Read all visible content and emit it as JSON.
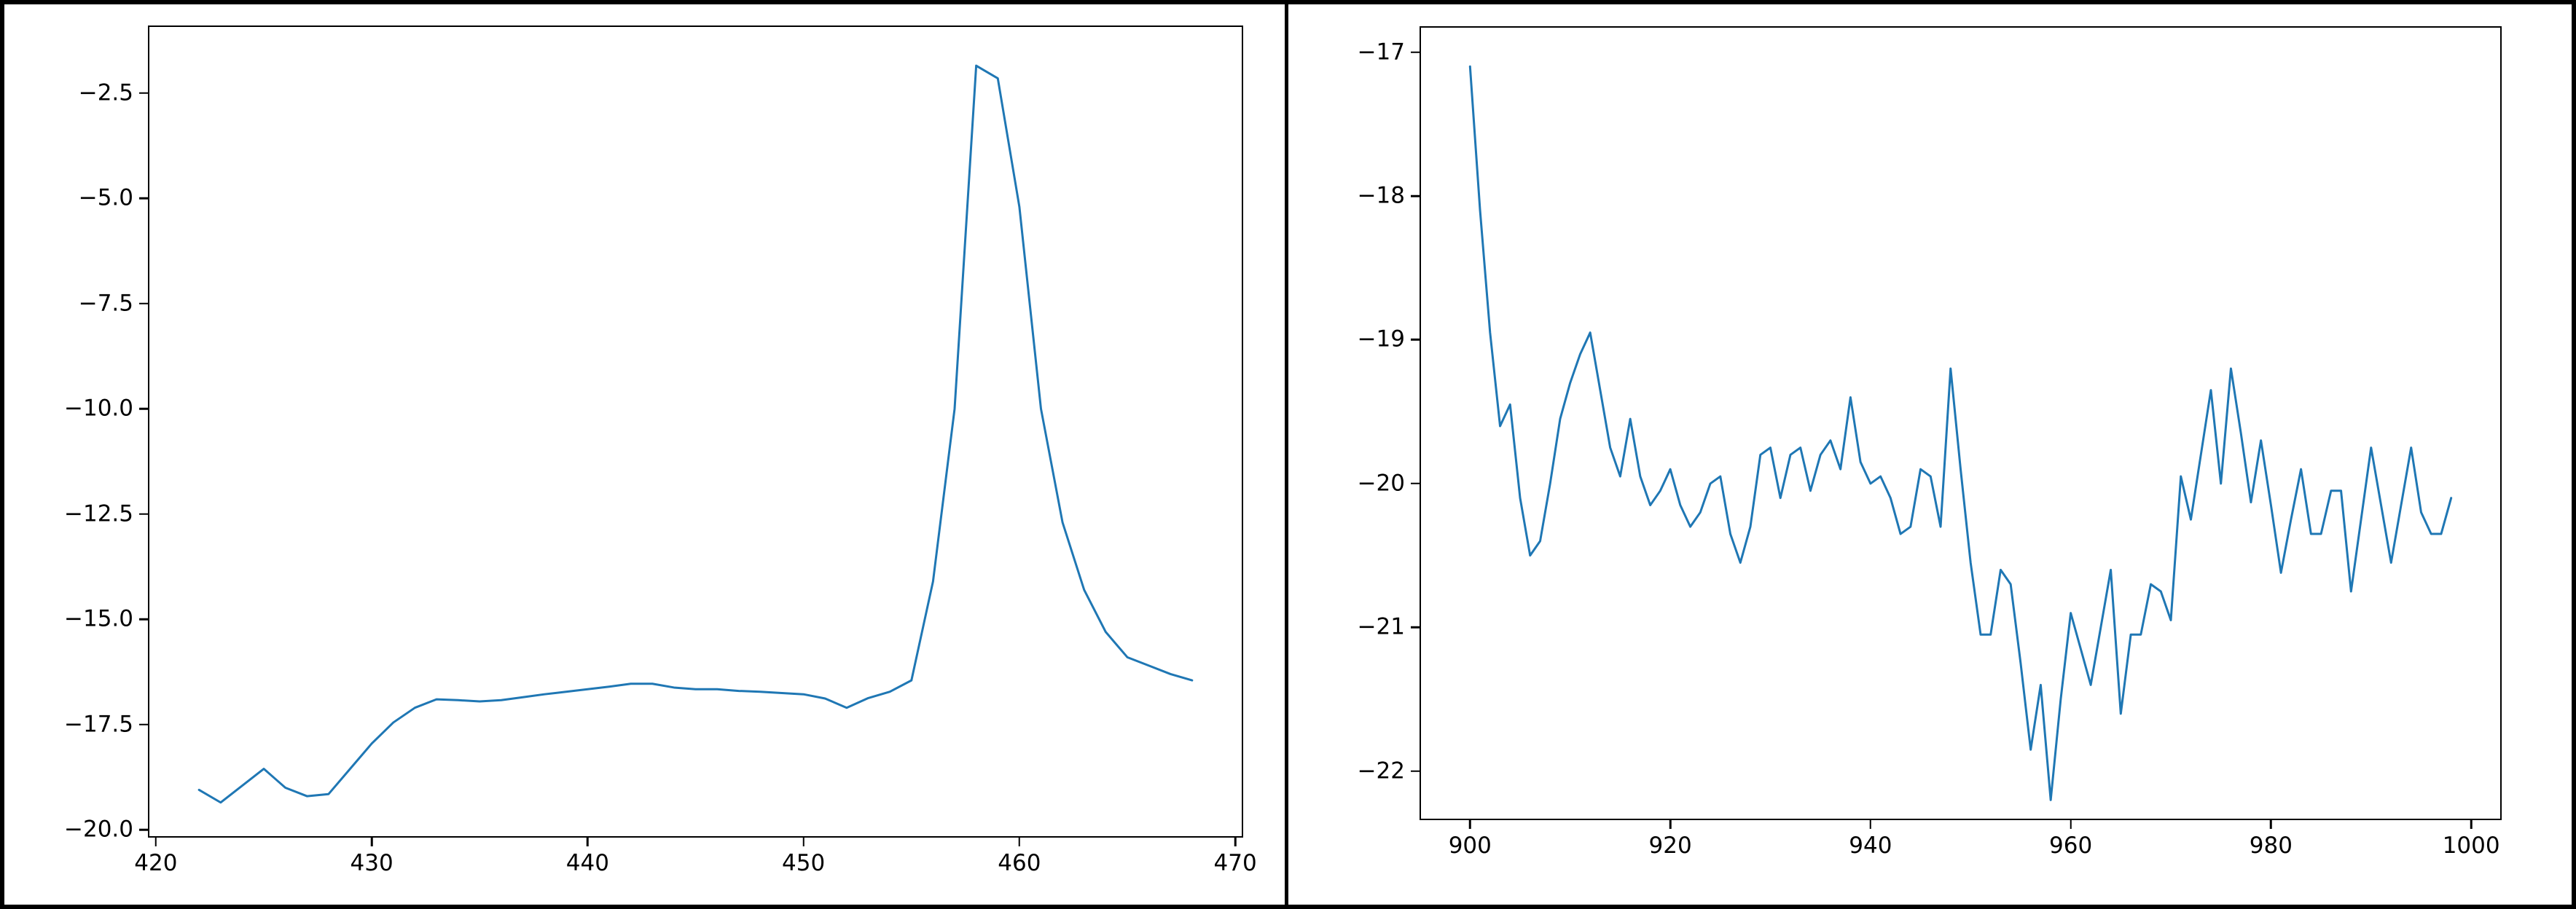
{
  "figure": {
    "background_color": "#ffffff",
    "frame_color": "#000000",
    "panel_count": 2
  },
  "chart_data": [
    {
      "type": "line",
      "series_name": "left-series-line",
      "line_color": "#1f77b4",
      "axis_color": "#000000",
      "grid": false,
      "legend": null,
      "xlabel": "",
      "ylabel": "",
      "xlim": [
        419.7,
        470.3
      ],
      "ylim": [
        -20.15,
        -0.93
      ],
      "xticks": [
        {
          "value": 420,
          "label": "420"
        },
        {
          "value": 430,
          "label": "430"
        },
        {
          "value": 440,
          "label": "440"
        },
        {
          "value": 450,
          "label": "450"
        },
        {
          "value": 460,
          "label": "460"
        },
        {
          "value": 470,
          "label": "470"
        }
      ],
      "yticks": [
        {
          "value": -2.5,
          "label": "−2.5"
        },
        {
          "value": -5.0,
          "label": "−5.0"
        },
        {
          "value": -7.5,
          "label": "−7.5"
        },
        {
          "value": -10.0,
          "label": "−10.0"
        },
        {
          "value": -12.5,
          "label": "−12.5"
        },
        {
          "value": -15.0,
          "label": "−15.0"
        },
        {
          "value": -17.5,
          "label": "−17.5"
        },
        {
          "value": -20.0,
          "label": "−20.0"
        }
      ],
      "x": [
        422,
        423,
        424,
        425,
        426,
        427,
        428,
        429,
        430,
        431,
        432,
        433,
        434,
        435,
        436,
        437,
        438,
        439,
        440,
        441,
        442,
        443,
        444,
        445,
        446,
        447,
        448,
        449,
        450,
        451,
        452,
        453,
        454,
        455,
        456,
        457,
        458,
        459,
        460,
        461,
        462,
        463,
        464,
        465,
        466,
        467,
        468
      ],
      "y": [
        -19.05,
        -19.35,
        -18.95,
        -18.55,
        -19.0,
        -19.2,
        -19.15,
        -18.55,
        -17.95,
        -17.45,
        -17.1,
        -16.9,
        -16.92,
        -16.95,
        -16.92,
        -16.85,
        -16.78,
        -16.72,
        -16.66,
        -16.6,
        -16.53,
        -16.53,
        -16.62,
        -16.66,
        -16.66,
        -16.7,
        -16.72,
        -16.75,
        -16.78,
        -16.88,
        -17.1,
        -16.87,
        -16.72,
        -16.45,
        -14.1,
        -10.0,
        -1.85,
        -2.15,
        -5.2,
        -10.0,
        -12.7,
        -14.3,
        -15.3,
        -15.9,
        -16.1,
        -16.3,
        -16.45
      ]
    },
    {
      "type": "line",
      "series_name": "right-series-line",
      "line_color": "#1f77b4",
      "axis_color": "#000000",
      "grid": false,
      "legend": null,
      "xlabel": "",
      "ylabel": "",
      "xlim": [
        895.1,
        1002.9
      ],
      "ylim": [
        -22.33,
        -16.83
      ],
      "xticks": [
        {
          "value": 900,
          "label": "900"
        },
        {
          "value": 920,
          "label": "920"
        },
        {
          "value": 940,
          "label": "940"
        },
        {
          "value": 960,
          "label": "960"
        },
        {
          "value": 980,
          "label": "980"
        },
        {
          "value": 1000,
          "label": "1000"
        }
      ],
      "yticks": [
        {
          "value": -17,
          "label": "−17"
        },
        {
          "value": -18,
          "label": "−18"
        },
        {
          "value": -19,
          "label": "−19"
        },
        {
          "value": -20,
          "label": "−20"
        },
        {
          "value": -21,
          "label": "−21"
        },
        {
          "value": -22,
          "label": "−22"
        }
      ],
      "x": [
        900,
        901,
        902,
        903,
        904,
        905,
        906,
        907,
        908,
        909,
        910,
        911,
        912,
        913,
        914,
        915,
        916,
        917,
        918,
        919,
        920,
        921,
        922,
        923,
        924,
        925,
        926,
        927,
        928,
        929,
        930,
        931,
        932,
        933,
        934,
        935,
        936,
        937,
        938,
        939,
        940,
        941,
        942,
        943,
        944,
        945,
        946,
        947,
        948,
        949,
        950,
        951,
        952,
        953,
        954,
        955,
        956,
        957,
        958,
        959,
        960,
        961,
        962,
        963,
        964,
        965,
        966,
        967,
        968,
        969,
        970,
        971,
        972,
        973,
        974,
        975,
        976,
        977,
        978,
        979,
        980,
        981,
        982,
        983,
        984,
        985,
        986,
        987,
        988,
        989,
        990,
        991,
        992,
        993,
        994,
        995,
        996,
        997,
        998
      ],
      "y": [
        -17.1,
        -18.1,
        -18.95,
        -19.6,
        -19.45,
        -20.1,
        -20.5,
        -20.4,
        -20.0,
        -19.55,
        -19.3,
        -19.1,
        -18.95,
        -19.35,
        -19.75,
        -19.95,
        -19.55,
        -19.95,
        -20.15,
        -20.05,
        -19.9,
        -20.15,
        -20.3,
        -20.2,
        -20.0,
        -19.95,
        -20.35,
        -20.55,
        -20.3,
        -19.8,
        -19.75,
        -20.1,
        -19.8,
        -19.75,
        -20.05,
        -19.8,
        -19.7,
        -19.9,
        -19.4,
        -19.85,
        -20.0,
        -19.95,
        -20.1,
        -20.35,
        -20.3,
        -19.9,
        -19.95,
        -20.3,
        -19.2,
        -19.9,
        -20.55,
        -21.05,
        -21.05,
        -20.6,
        -20.7,
        -21.25,
        -21.85,
        -21.4,
        -22.2,
        -21.5,
        -20.9,
        -21.15,
        -21.4,
        -21.0,
        -20.6,
        -21.6,
        -21.05,
        -21.05,
        -20.7,
        -20.75,
        -20.95,
        -19.95,
        -20.25,
        -19.8,
        -19.35,
        -20.0,
        -19.2,
        -19.65,
        -20.13,
        -19.7,
        -20.15,
        -20.62,
        -20.25,
        -19.9,
        -20.35,
        -20.35,
        -20.05,
        -20.05,
        -20.75,
        -20.25,
        -19.75,
        -20.15,
        -20.55,
        -20.15,
        -19.75,
        -20.2,
        -20.35,
        -20.35,
        -20.1
      ]
    }
  ]
}
